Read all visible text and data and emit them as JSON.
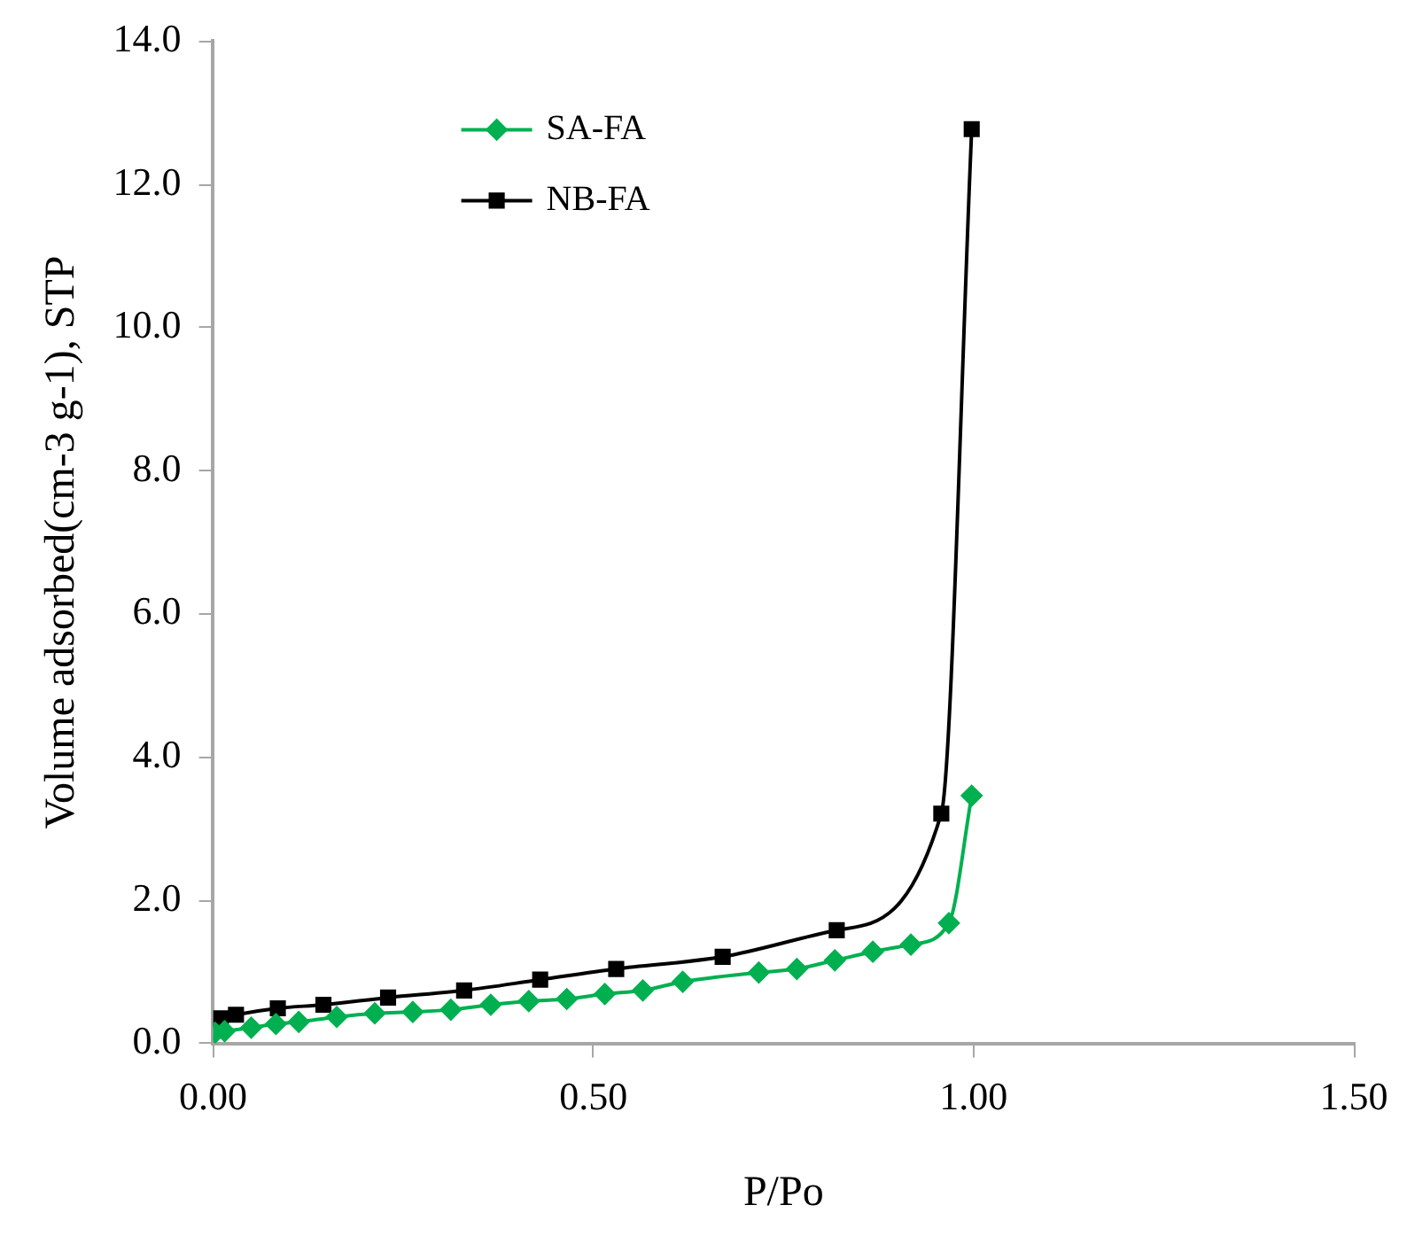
{
  "chart_data": {
    "type": "line",
    "xlabel": "P/Po",
    "ylabel": "Volume adsorbed(cm-3 g-1), STP",
    "xlim": [
      0,
      1.5
    ],
    "xticks": [
      {
        "value": 0,
        "label": "0.00"
      },
      {
        "value": 0.5,
        "label": "0.50"
      },
      {
        "value": 1,
        "label": "1.00"
      },
      {
        "value": 1.5,
        "label": "1.50"
      }
    ],
    "ylim": [
      0,
      14
    ],
    "yticks": [
      {
        "value": 0,
        "label": "0.0"
      },
      {
        "value": 2,
        "label": "2.0"
      },
      {
        "value": 4,
        "label": "4.0"
      },
      {
        "value": 6,
        "label": "6.0"
      },
      {
        "value": 8,
        "label": "8.0"
      },
      {
        "value": 10,
        "label": "10.0"
      },
      {
        "value": 12,
        "label": "12.0"
      },
      {
        "value": 14,
        "label": "14.0"
      }
    ],
    "grid": false,
    "legend": "top left",
    "series": [
      {
        "name": "SA-FA",
        "color": "#00b050",
        "marker": "diamond",
        "x": [
          0.0025,
          0.015,
          0.05,
          0.0825,
          0.1125,
          0.1625,
          0.2125,
          0.2625,
          0.3125,
          0.365,
          0.415,
          0.465,
          0.515,
          0.565,
          0.6175,
          0.7175,
          0.7675,
          0.8175,
          0.8675,
          0.9175,
          0.9675,
          0.9975
        ],
        "values": [
          0.15,
          0.17,
          0.22,
          0.27,
          0.3,
          0.37,
          0.42,
          0.44,
          0.47,
          0.54,
          0.59,
          0.62,
          0.69,
          0.74,
          0.86,
          0.99,
          1.04,
          1.16,
          1.28,
          1.38,
          1.68,
          3.46
        ]
      },
      {
        "name": "NB-FA",
        "color": "#000000",
        "marker": "square",
        "x": [
          0.01,
          0.03,
          0.085,
          0.145,
          0.23,
          0.33,
          0.43,
          0.53,
          0.67,
          0.82,
          0.9575,
          0.9975
        ],
        "values": [
          0.35,
          0.4,
          0.49,
          0.54,
          0.64,
          0.74,
          0.89,
          1.04,
          1.21,
          1.58,
          3.21,
          12.77
        ]
      }
    ]
  }
}
